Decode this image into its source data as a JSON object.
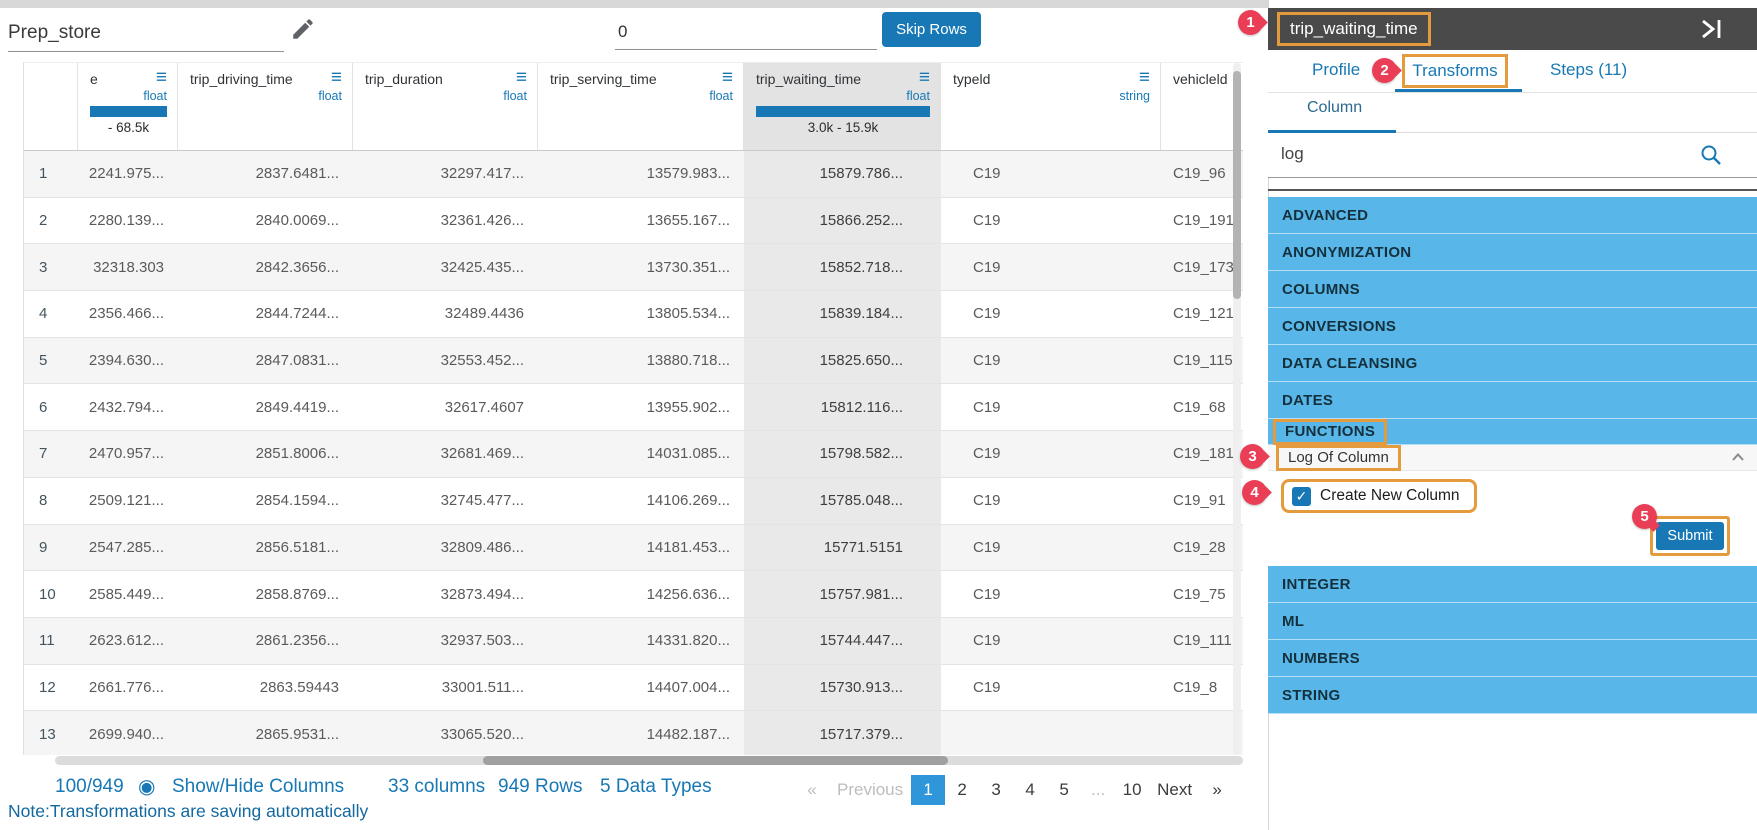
{
  "toolbar": {
    "dataset_name": "Prep_store",
    "skip_rows_value": "0",
    "skip_rows_label": "Skip Rows"
  },
  "table": {
    "columns": [
      {
        "name": "e",
        "type": "float",
        "range": "- 68.5k",
        "bar": true,
        "menu": true
      },
      {
        "name": "trip_driving_time",
        "type": "float",
        "menu": true
      },
      {
        "name": "trip_duration",
        "type": "float",
        "menu": true
      },
      {
        "name": "trip_serving_time",
        "type": "float",
        "menu": true
      },
      {
        "name": "trip_waiting_time",
        "type": "float",
        "range": "3.0k - 15.9k",
        "bar": true,
        "menu": true,
        "selected": true
      },
      {
        "name": "typeld",
        "type": "string",
        "menu": true
      },
      {
        "name": "vehicleld",
        "type": "",
        "menu": false
      }
    ],
    "rows": [
      {
        "n": "1",
        "c": [
          "2241.975...",
          "2837.6481...",
          "32297.417...",
          "13579.983...",
          "15879.786...",
          "C19",
          "C19_96"
        ]
      },
      {
        "n": "2",
        "c": [
          "2280.139...",
          "2840.0069...",
          "32361.426...",
          "13655.167...",
          "15866.252...",
          "C19",
          "C19_191"
        ]
      },
      {
        "n": "3",
        "c": [
          "32318.303",
          "2842.3656...",
          "32425.435...",
          "13730.351...",
          "15852.718...",
          "C19",
          "C19_173"
        ]
      },
      {
        "n": "4",
        "c": [
          "2356.466...",
          "2844.7244...",
          "32489.4436",
          "13805.534...",
          "15839.184...",
          "C19",
          "C19_121"
        ]
      },
      {
        "n": "5",
        "c": [
          "2394.630...",
          "2847.0831...",
          "32553.452...",
          "13880.718...",
          "15825.650...",
          "C19",
          "C19_115"
        ]
      },
      {
        "n": "6",
        "c": [
          "2432.794...",
          "2849.4419...",
          "32617.4607",
          "13955.902...",
          "15812.116...",
          "C19",
          "C19_68"
        ]
      },
      {
        "n": "7",
        "c": [
          "2470.957...",
          "2851.8006...",
          "32681.469...",
          "14031.085...",
          "15798.582...",
          "C19",
          "C19_181"
        ]
      },
      {
        "n": "8",
        "c": [
          "2509.121...",
          "2854.1594...",
          "32745.477...",
          "14106.269...",
          "15785.048...",
          "C19",
          "C19_91"
        ]
      },
      {
        "n": "9",
        "c": [
          "2547.285...",
          "2856.5181...",
          "32809.486...",
          "14181.453...",
          "15771.5151",
          "C19",
          "C19_28"
        ]
      },
      {
        "n": "10",
        "c": [
          "2585.449...",
          "2858.8769...",
          "32873.494...",
          "14256.636...",
          "15757.981...",
          "C19",
          "C19_75"
        ]
      },
      {
        "n": "11",
        "c": [
          "2623.612...",
          "2861.2356...",
          "32937.503...",
          "14331.820...",
          "15744.447...",
          "C19",
          "C19_111"
        ]
      },
      {
        "n": "12",
        "c": [
          "2661.776...",
          "2863.59443",
          "33001.511...",
          "14407.004...",
          "15730.913...",
          "C19",
          "C19_8"
        ]
      },
      {
        "n": "13",
        "c": [
          "2699.940...",
          "2865.9531...",
          "33065.520...",
          "14482.187...",
          "15717.379...",
          "",
          ""
        ]
      }
    ]
  },
  "statusbar": {
    "progress": "100/949",
    "show_hide": "Show/Hide Columns",
    "columns_info": "33 columns",
    "rows_info": "949 Rows",
    "types_info": "5 Data Types",
    "note": "Note:Transformations are saving automatically",
    "pagination": {
      "prev_arrow": "«",
      "prev": "Previous",
      "pages": [
        "1",
        "2",
        "3",
        "4",
        "5",
        "...",
        "10"
      ],
      "active_page": "1",
      "next": "Next",
      "next_arrow": "»"
    }
  },
  "panel": {
    "title": "trip_waiting_time",
    "tabs": [
      {
        "label": "Profile",
        "active": false
      },
      {
        "label": "Transforms",
        "active": true
      },
      {
        "label": "Steps (11)",
        "active": false
      }
    ],
    "subtab": "Column",
    "search_value": "log",
    "categories_top": [
      "ADVANCED",
      "ANONYMIZATION",
      "COLUMNS",
      "CONVERSIONS",
      "DATA CLEANSING",
      "DATES",
      "FUNCTIONS"
    ],
    "highlighted_category": "FUNCTIONS",
    "expanded_item": "Log Of Column",
    "checkbox_label": "Create New Column",
    "checkbox_checked": true,
    "submit_label": "Submit",
    "categories_bottom": [
      "INTEGER",
      "ML",
      "NUMBERS",
      "STRING"
    ],
    "badges": [
      "1",
      "2",
      "3",
      "4",
      "5"
    ]
  },
  "icons": {
    "menu": "≡",
    "eye": "◉",
    "check": "✓"
  },
  "colors": {
    "accent": "#1778b5",
    "category_blue": "#58b7e8",
    "annotation_orange": "#e39b3d",
    "badge_red": "#ea3e56",
    "panel_header_dark": "#4a4a4a",
    "active_page_blue": "#2e96d9"
  }
}
